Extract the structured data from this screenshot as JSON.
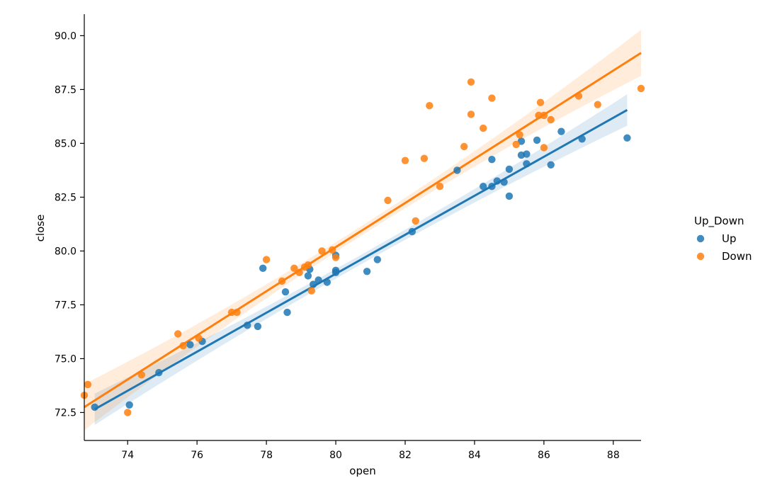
{
  "chart_data": {
    "type": "scatter",
    "xlabel": "open",
    "ylabel": "close",
    "xlim": [
      72.75,
      88.8
    ],
    "ylim": [
      71.2,
      91.0
    ],
    "x_ticks": [
      "74",
      "76",
      "78",
      "80",
      "82",
      "84",
      "86",
      "88"
    ],
    "y_ticks": [
      "72.5",
      "75.0",
      "77.5",
      "80.0",
      "82.5",
      "85.0",
      "87.5",
      "90.0"
    ],
    "legend": {
      "title": "Up_Down",
      "placement": "center-right"
    },
    "grid": false,
    "series": [
      {
        "name": "Up",
        "color": "#1f77b4",
        "points": [
          [
            73.05,
            72.75
          ],
          [
            74.05,
            72.85
          ],
          [
            74.9,
            74.35
          ],
          [
            75.8,
            75.65
          ],
          [
            76.15,
            75.8
          ],
          [
            77.45,
            76.55
          ],
          [
            77.75,
            76.5
          ],
          [
            77.9,
            79.2
          ],
          [
            78.55,
            78.1
          ],
          [
            78.6,
            77.15
          ],
          [
            79.2,
            78.85
          ],
          [
            79.25,
            79.15
          ],
          [
            79.35,
            78.45
          ],
          [
            79.5,
            78.65
          ],
          [
            79.75,
            78.55
          ],
          [
            80.0,
            79.0
          ],
          [
            80.0,
            79.1
          ],
          [
            80.0,
            79.8
          ],
          [
            80.9,
            79.05
          ],
          [
            81.2,
            79.6
          ],
          [
            82.2,
            80.9
          ],
          [
            83.5,
            83.75
          ],
          [
            84.25,
            83.0
          ],
          [
            84.5,
            83.0
          ],
          [
            84.5,
            84.25
          ],
          [
            84.65,
            83.25
          ],
          [
            84.85,
            83.2
          ],
          [
            85.0,
            82.55
          ],
          [
            85.0,
            83.8
          ],
          [
            85.35,
            85.1
          ],
          [
            85.35,
            84.45
          ],
          [
            85.5,
            84.5
          ],
          [
            85.5,
            84.05
          ],
          [
            85.8,
            85.15
          ],
          [
            86.2,
            84.0
          ],
          [
            86.5,
            85.55
          ],
          [
            87.1,
            85.2
          ],
          [
            88.4,
            85.25
          ]
        ],
        "fit": {
          "x_start": 73.05,
          "x_end": 88.4,
          "y_start": 72.65,
          "y_end": 86.55
        }
      },
      {
        "name": "Down",
        "color": "#ff7f0e",
        "points": [
          [
            72.75,
            73.3
          ],
          [
            72.85,
            73.8
          ],
          [
            74.0,
            72.5
          ],
          [
            74.4,
            74.25
          ],
          [
            75.45,
            76.15
          ],
          [
            75.6,
            75.6
          ],
          [
            76.05,
            75.95
          ],
          [
            77.0,
            77.15
          ],
          [
            77.15,
            77.15
          ],
          [
            78.0,
            79.6
          ],
          [
            78.45,
            78.6
          ],
          [
            78.8,
            79.2
          ],
          [
            78.95,
            79.0
          ],
          [
            79.1,
            79.25
          ],
          [
            79.2,
            79.35
          ],
          [
            79.3,
            78.15
          ],
          [
            79.6,
            80.0
          ],
          [
            79.9,
            80.05
          ],
          [
            80.0,
            79.7
          ],
          [
            81.5,
            82.35
          ],
          [
            82.0,
            84.2
          ],
          [
            82.3,
            81.4
          ],
          [
            82.55,
            84.3
          ],
          [
            82.7,
            86.75
          ],
          [
            83.0,
            83.0
          ],
          [
            83.7,
            84.85
          ],
          [
            83.9,
            87.85
          ],
          [
            83.9,
            86.35
          ],
          [
            84.25,
            85.7
          ],
          [
            84.5,
            87.1
          ],
          [
            85.2,
            84.95
          ],
          [
            85.3,
            85.4
          ],
          [
            85.85,
            86.3
          ],
          [
            85.9,
            86.9
          ],
          [
            86.0,
            86.3
          ],
          [
            86.0,
            84.8
          ],
          [
            86.2,
            86.1
          ],
          [
            87.0,
            87.2
          ],
          [
            87.55,
            86.8
          ],
          [
            88.8,
            87.55
          ]
        ],
        "fit": {
          "x_start": 72.75,
          "x_end": 88.8,
          "y_start": 72.75,
          "y_end": 89.2
        }
      }
    ]
  }
}
